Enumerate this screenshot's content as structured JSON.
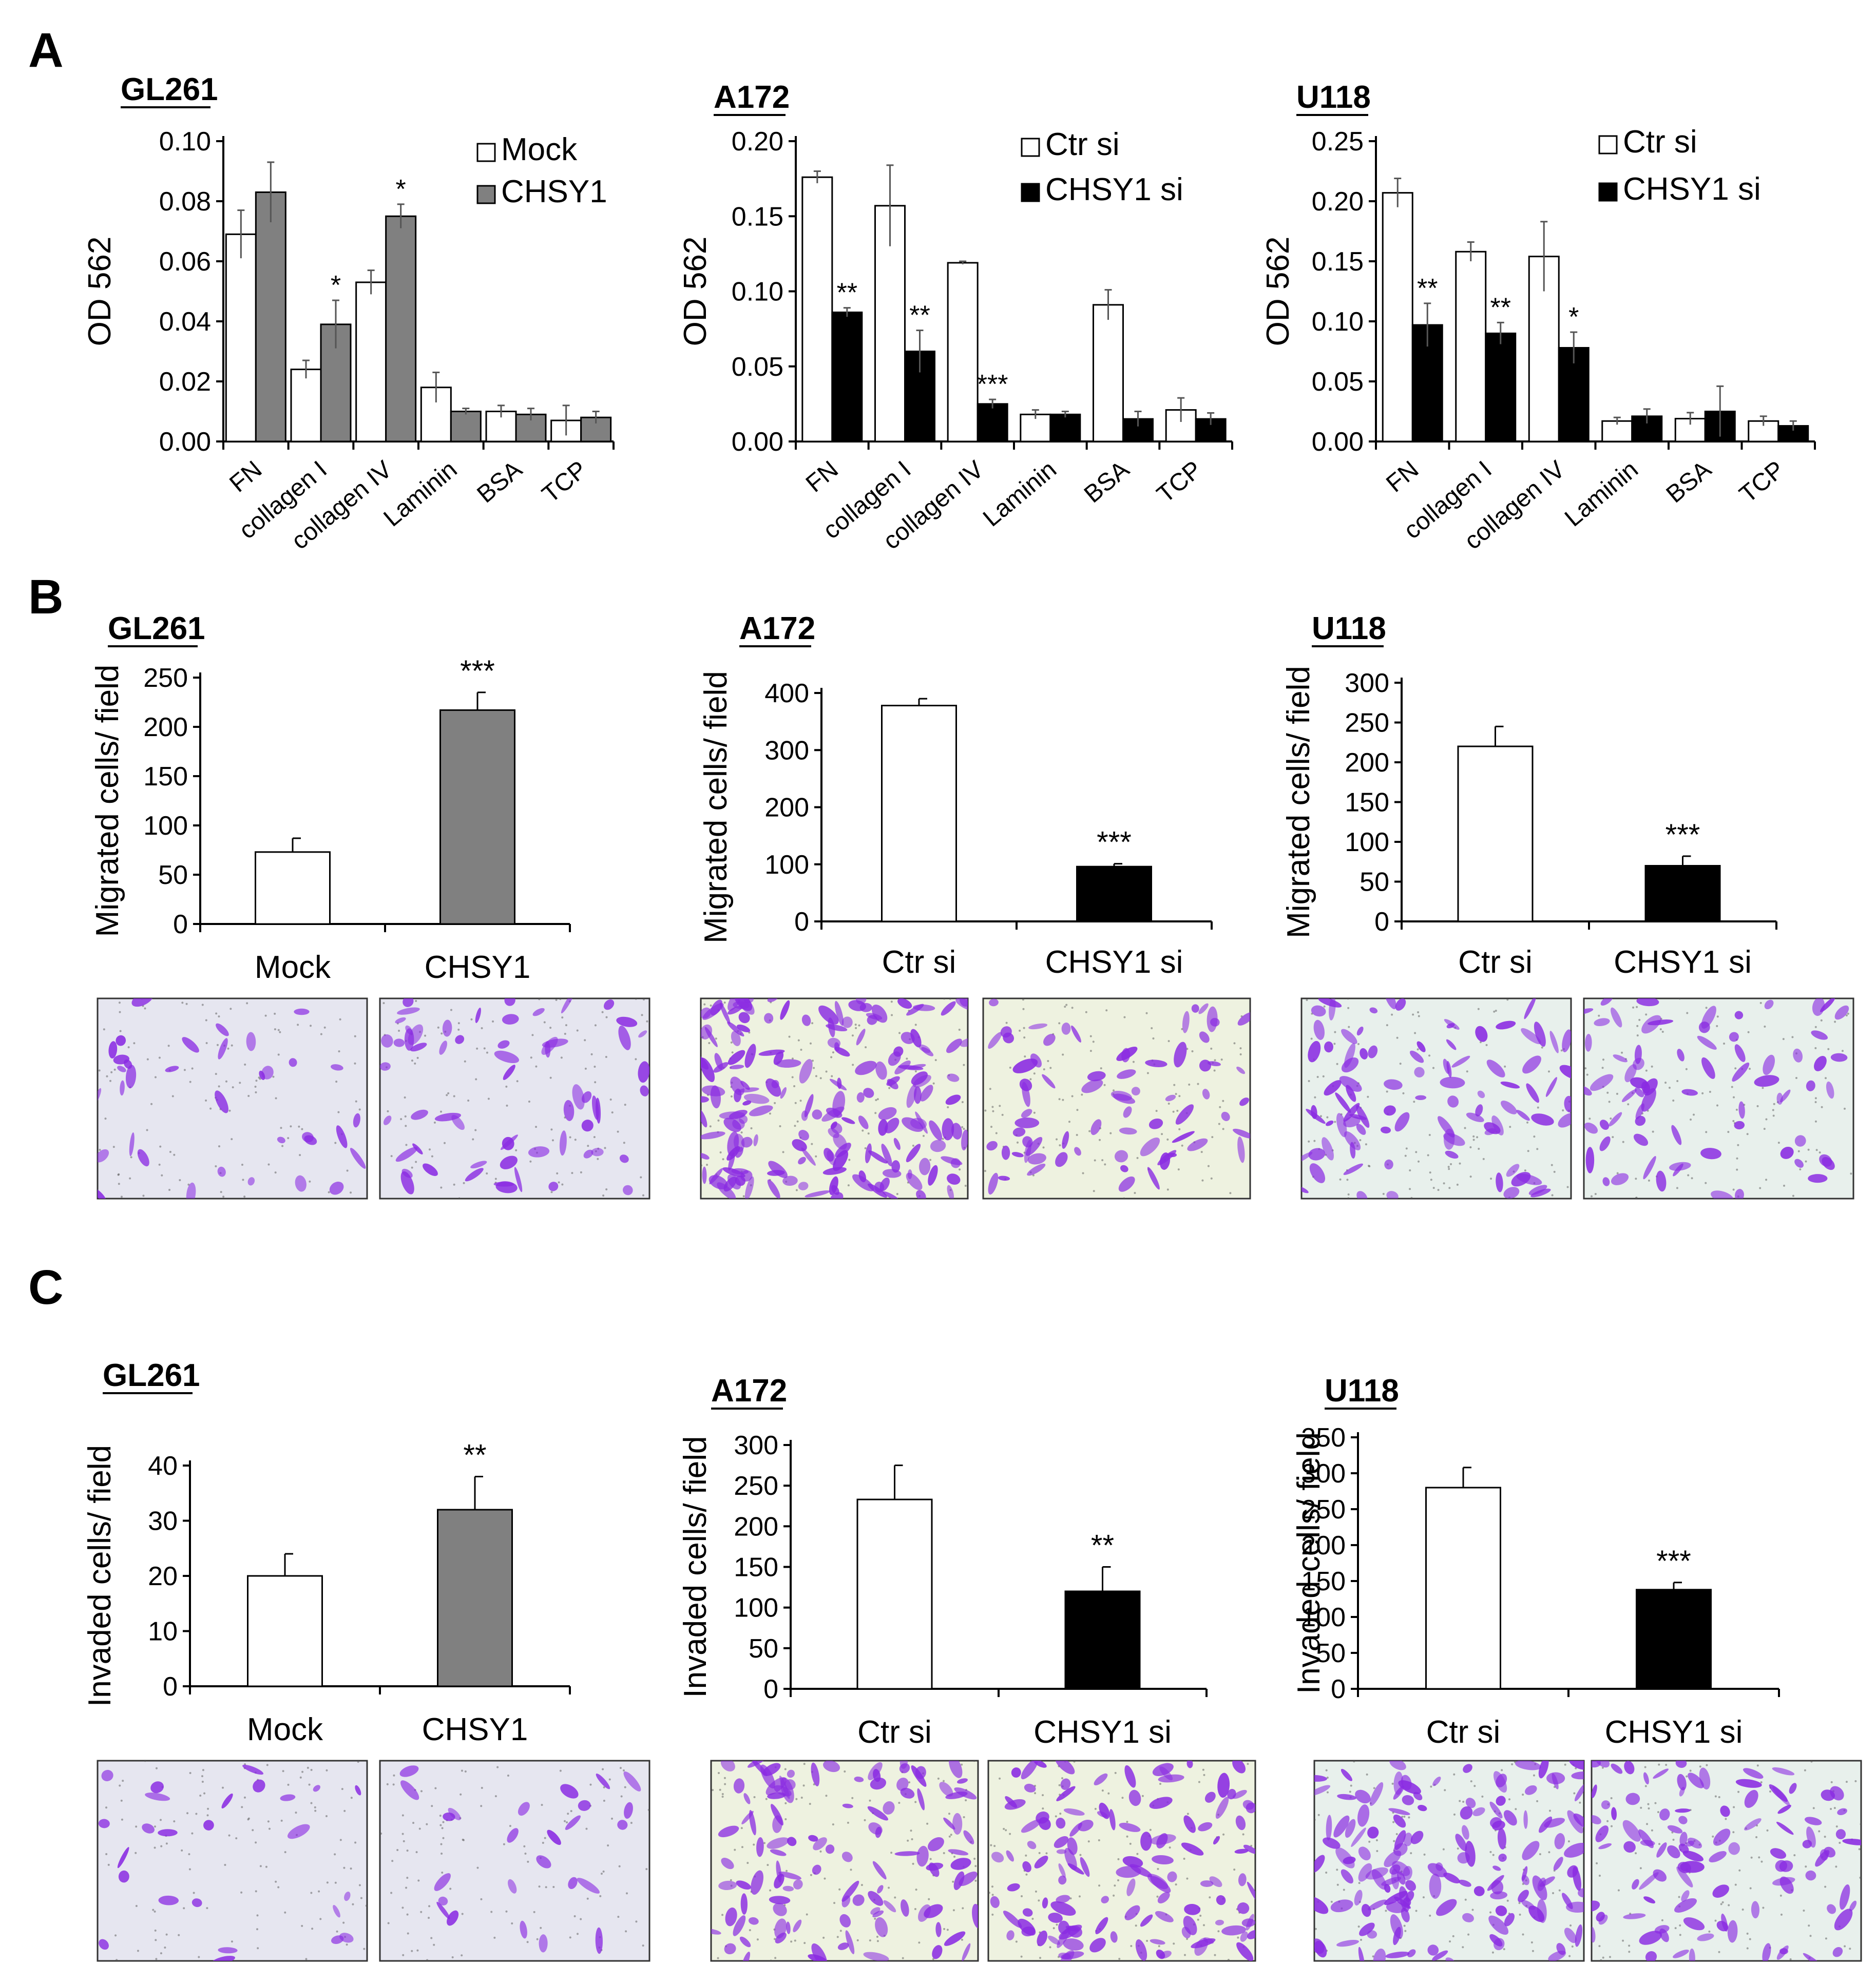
{
  "panel_letters": [
    "A",
    "B",
    "C"
  ],
  "chart_data": [
    {
      "panel": "A",
      "type": "bar",
      "title": "GL261",
      "ylabel": "OD 562",
      "xlabel": "",
      "ylim": [
        0,
        0.1
      ],
      "yticks": [
        "0.00",
        "0.02",
        "0.04",
        "0.06",
        "0.08",
        "0.10"
      ],
      "categories": [
        "FN",
        "collagen I",
        "collagen IV",
        "Laminin",
        "BSA",
        "TCP"
      ],
      "series": [
        {
          "name": "Mock",
          "color": "#ffffff",
          "values": [
            0.069,
            0.024,
            0.053,
            0.018,
            0.01,
            0.007
          ],
          "errors": [
            0.008,
            0.003,
            0.004,
            0.005,
            0.002,
            0.005
          ]
        },
        {
          "name": "CHSY1",
          "color": "#808080",
          "values": [
            0.083,
            0.039,
            0.075,
            0.01,
            0.009,
            0.008
          ],
          "errors": [
            0.01,
            0.008,
            0.004,
            0.001,
            0.002,
            0.002
          ]
        }
      ],
      "significance": [
        {
          "category": 2,
          "series": 1,
          "label": "*"
        },
        {
          "category": 1,
          "series": 1,
          "label": "*"
        }
      ],
      "legend": "top-right",
      "grid": false
    },
    {
      "panel": "A",
      "type": "bar",
      "title": "A172",
      "ylabel": "OD 562",
      "xlabel": "",
      "ylim": [
        0,
        0.2
      ],
      "yticks": [
        "0.00",
        "0.05",
        "0.10",
        "0.15",
        "0.20"
      ],
      "categories": [
        "FN",
        "collagen I",
        "collagen IV",
        "Laminin",
        "BSA",
        "TCP"
      ],
      "series": [
        {
          "name": "Ctr si",
          "color": "#ffffff",
          "values": [
            0.176,
            0.157,
            0.119,
            0.018,
            0.091,
            0.021
          ],
          "errors": [
            0.004,
            0.027,
            0.001,
            0.003,
            0.01,
            0.008
          ]
        },
        {
          "name": "CHSY1 si",
          "color": "#000000",
          "values": [
            0.086,
            0.06,
            0.025,
            0.018,
            0.015,
            0.015
          ],
          "errors": [
            0.003,
            0.014,
            0.003,
            0.002,
            0.005,
            0.004
          ]
        }
      ],
      "significance": [
        {
          "category": 0,
          "series": 1,
          "label": "**"
        },
        {
          "category": 1,
          "series": 1,
          "label": "**"
        },
        {
          "category": 2,
          "series": 1,
          "label": "***"
        }
      ],
      "legend": "top-right",
      "grid": false
    },
    {
      "panel": "A",
      "type": "bar",
      "title": "U118",
      "ylabel": "OD 562",
      "xlabel": "",
      "ylim": [
        0,
        0.25
      ],
      "yticks": [
        "0.00",
        "0.05",
        "0.10",
        "0.15",
        "0.20",
        "0.25"
      ],
      "categories": [
        "FN",
        "collagen I",
        "collagen IV",
        "Laminin",
        "BSA",
        "TCP"
      ],
      "series": [
        {
          "name": "Ctr si",
          "color": "#ffffff",
          "values": [
            0.207,
            0.158,
            0.154,
            0.017,
            0.019,
            0.017
          ],
          "errors": [
            0.012,
            0.008,
            0.029,
            0.003,
            0.005,
            0.004
          ]
        },
        {
          "name": "CHSY1 si",
          "color": "#000000",
          "values": [
            0.097,
            0.09,
            0.078,
            0.021,
            0.025,
            0.013
          ],
          "errors": [
            0.018,
            0.009,
            0.013,
            0.006,
            0.021,
            0.004
          ]
        }
      ],
      "significance": [
        {
          "category": 0,
          "series": 1,
          "label": "**"
        },
        {
          "category": 1,
          "series": 1,
          "label": "**"
        },
        {
          "category": 2,
          "series": 1,
          "label": "*"
        }
      ],
      "legend": "top-right",
      "grid": false
    },
    {
      "panel": "B",
      "type": "bar",
      "title": "GL261",
      "ylabel": "Migrated cells/ field",
      "xlabel": "",
      "ylim": [
        0,
        250
      ],
      "yticks": [
        "0",
        "50",
        "100",
        "150",
        "200",
        "250"
      ],
      "categories": [
        "Mock",
        "CHSY1"
      ],
      "values": [
        73,
        217
      ],
      "errors": [
        14,
        18
      ],
      "colors": [
        "#ffffff",
        "#808080"
      ],
      "significance": [
        {
          "index": 1,
          "label": "***"
        }
      ],
      "grid": false
    },
    {
      "panel": "B",
      "type": "bar",
      "title": "A172",
      "ylabel": "Migrated cells/ field",
      "xlabel": "",
      "ylim": [
        0,
        400
      ],
      "yticks": [
        "0",
        "100",
        "200",
        "300",
        "400"
      ],
      "categories": [
        "Ctr si",
        "CHSY1 si"
      ],
      "values": [
        378,
        96
      ],
      "errors": [
        12,
        5
      ],
      "colors": [
        "#ffffff",
        "#000000"
      ],
      "significance": [
        {
          "index": 1,
          "label": "***"
        }
      ],
      "grid": false
    },
    {
      "panel": "B",
      "type": "bar",
      "title": "U118",
      "ylabel": "Migrated cells/ field",
      "xlabel": "",
      "ylim": [
        0,
        300
      ],
      "yticks": [
        "0",
        "50",
        "100",
        "150",
        "200",
        "250",
        "300"
      ],
      "categories": [
        "Ctr si",
        "CHSY1 si"
      ],
      "values": [
        220,
        70
      ],
      "errors": [
        25,
        12
      ],
      "colors": [
        "#ffffff",
        "#000000"
      ],
      "significance": [
        {
          "index": 1,
          "label": "***"
        }
      ],
      "grid": false
    },
    {
      "panel": "C",
      "type": "bar",
      "title": "GL261",
      "ylabel": "Invaded cells/ field",
      "xlabel": "",
      "ylim": [
        0,
        40
      ],
      "yticks": [
        "0",
        "10",
        "20",
        "30",
        "40"
      ],
      "categories": [
        "Mock",
        "CHSY1"
      ],
      "values": [
        20,
        32
      ],
      "errors": [
        4,
        6
      ],
      "colors": [
        "#ffffff",
        "#808080"
      ],
      "significance": [
        {
          "index": 1,
          "label": "**"
        }
      ],
      "grid": false
    },
    {
      "panel": "C",
      "type": "bar",
      "title": "A172",
      "ylabel": "Invaded cells/ field",
      "xlabel": "",
      "ylim": [
        0,
        300
      ],
      "yticks": [
        "0",
        "50",
        "100",
        "150",
        "200",
        "250",
        "300"
      ],
      "categories": [
        "Ctr si",
        "CHSY1 si"
      ],
      "values": [
        233,
        120
      ],
      "errors": [
        42,
        30
      ],
      "colors": [
        "#ffffff",
        "#000000"
      ],
      "significance": [
        {
          "index": 1,
          "label": "**"
        }
      ],
      "grid": false
    },
    {
      "panel": "C",
      "type": "bar",
      "title": "U118",
      "ylabel": "Invaded cells/ field",
      "xlabel": "",
      "ylim": [
        0,
        350
      ],
      "yticks": [
        "0",
        "50",
        "100",
        "150",
        "200",
        "250",
        "300",
        "350"
      ],
      "categories": [
        "Ctr si",
        "CHSY1 si"
      ],
      "values": [
        280,
        138
      ],
      "errors": [
        28,
        10
      ],
      "colors": [
        "#ffffff",
        "#000000"
      ],
      "significance": [
        {
          "index": 1,
          "label": "***"
        }
      ],
      "grid": false
    }
  ],
  "micrograph_colors": {
    "background_gl261": "#e6e6f0",
    "background_a172": "#eef2e0",
    "background_u118": "#e8f0ec",
    "stain": "#8a2be2"
  }
}
